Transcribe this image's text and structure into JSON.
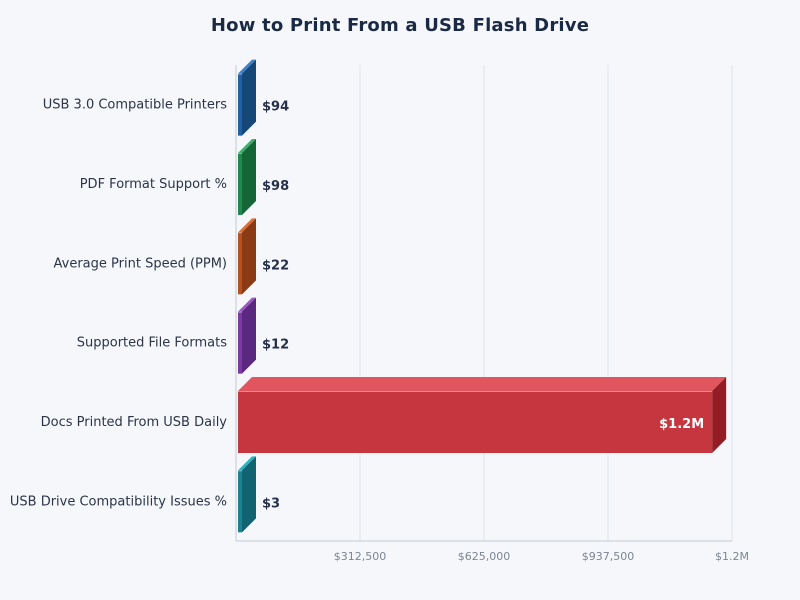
{
  "chart_data": {
    "type": "bar",
    "orientation": "horizontal",
    "title": "How to Print From a USB Flash Drive",
    "xlabel": "",
    "ylabel": "",
    "xlim": [
      0,
      1250000
    ],
    "grid": true,
    "legend": "none",
    "categories": [
      "USB 3.0 Compatible Printers",
      "PDF Format Support %",
      "Average Print Speed (PPM)",
      "Supported File Formats",
      "Docs Printed From USB Daily",
      "USB Drive Compatibility Issues %"
    ],
    "values": [
      94,
      98,
      22,
      12,
      1200000,
      3
    ],
    "value_labels": [
      "$94",
      "$98",
      "$22",
      "$12",
      "$1.2M",
      "$3"
    ],
    "x_ticks": [
      312500,
      625000,
      937500,
      1250000
    ],
    "x_tick_labels": [
      "$312,500",
      "$625,000",
      "$937,500",
      "$1.2M"
    ],
    "colors": [
      "#2160a6",
      "#1f8a4c",
      "#b5501f",
      "#7b3aa3",
      "#c5363f",
      "#1a8291"
    ],
    "top_colors": [
      "#3f82c9",
      "#3fb06b",
      "#d87038",
      "#9b57c4",
      "#e0555e",
      "#2fb2c0"
    ],
    "side_colors": [
      "#164877",
      "#156636",
      "#8a3b14",
      "#5b2880",
      "#941d25",
      "#106370"
    ]
  }
}
